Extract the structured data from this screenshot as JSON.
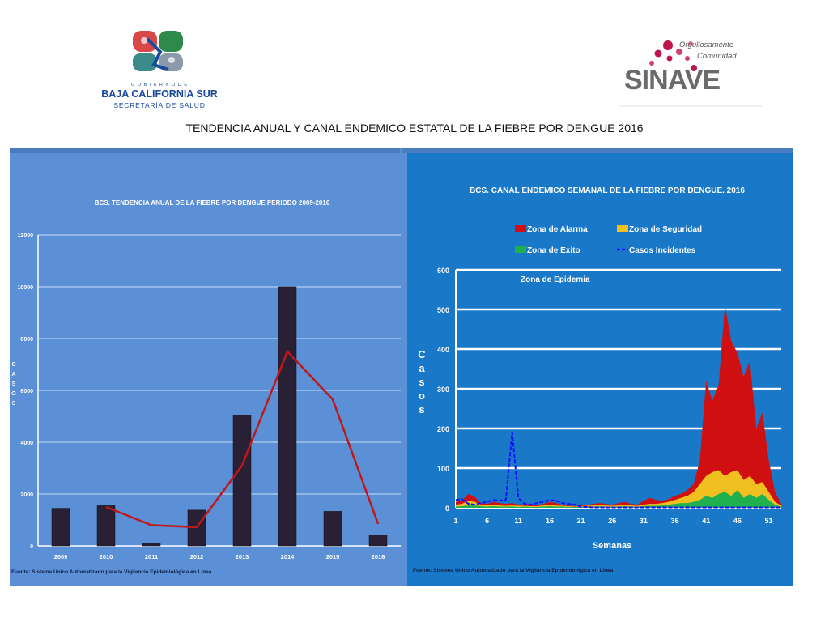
{
  "page_title": "TENDENCIA ANUAL Y CANAL ENDEMICO  ESTATAL DE LA FIEBRE POR DENGUE 2016",
  "logo_left": {
    "gobierno": "G O B I E R N O   D E",
    "state": "BAJA CALIFORNIA SUR",
    "dept": "SECRETARÍA DE SALUD"
  },
  "logo_right": {
    "tagline1": "Orgullosamente",
    "tagline2": "Comunidad",
    "name": "SINAVE"
  },
  "colors": {
    "bar": "#2a2035",
    "trend": "#c01818",
    "alarma": "#d01010",
    "seguridad": "#f0c020",
    "exito": "#20b050",
    "casos": "#1010ff"
  },
  "chart_data": [
    {
      "type": "bar",
      "title": "BCS. TENDENCIA ANUAL DE LA FIEBRE POR DENGUE  PERIODO 2009-2016",
      "categories": [
        "2009",
        "2010",
        "2011",
        "2012",
        "2013",
        "2014",
        "2015",
        "2016"
      ],
      "values": [
        1450,
        1550,
        100,
        1380,
        5050,
        10000,
        1330,
        420
      ],
      "trend_line": {
        "start_index": 1,
        "values": [
          1500,
          800,
          720,
          3100,
          7500,
          5650,
          850
        ]
      },
      "ylabel": "C A S O S",
      "ylabel_letters": [
        "C",
        "A",
        "S",
        "O",
        "S"
      ],
      "ylim": [
        0,
        12000
      ],
      "yticks": [
        "0",
        "2000",
        "4000",
        "6000",
        "8000",
        "10000",
        "12000"
      ],
      "grid": true,
      "source": "Fuente: Sistema Único Automatizado para la Vigilancia Epidemiológica en Línea"
    },
    {
      "type": "area",
      "title": "BCS. CANAL ENDEMICO SEMANAL DE LA FIEBRE POR DENGUE. 2016",
      "legend": [
        "Zona de Alarma",
        "Zona de Seguridad",
        "Zona de Exito",
        "Casos Incidentes"
      ],
      "zone_label": "Zona de Epidemia",
      "xlabel": "Semanas",
      "ylabel": "Casos",
      "ylabel_letters": [
        "C",
        "a",
        "s",
        "o",
        "s"
      ],
      "xticks": [
        "1",
        "6",
        "11",
        "16",
        "21",
        "26",
        "31",
        "36",
        "41",
        "46",
        "51"
      ],
      "yticks": [
        "0",
        "100",
        "200",
        "300",
        "400",
        "500",
        "600"
      ],
      "ylim": [
        0,
        600
      ],
      "xlim": [
        1,
        53
      ],
      "weeks": [
        1,
        2,
        3,
        4,
        5,
        6,
        7,
        8,
        9,
        10,
        11,
        12,
        13,
        14,
        15,
        16,
        17,
        18,
        19,
        20,
        21,
        22,
        23,
        24,
        25,
        26,
        27,
        28,
        29,
        30,
        31,
        32,
        33,
        34,
        35,
        36,
        37,
        38,
        39,
        40,
        41,
        42,
        43,
        44,
        45,
        46,
        47,
        48,
        49,
        50,
        51,
        52,
        53
      ],
      "series": [
        {
          "name": "Zona de Alarma",
          "values": [
            15,
            18,
            35,
            28,
            12,
            10,
            15,
            12,
            10,
            12,
            8,
            10,
            8,
            6,
            10,
            15,
            12,
            8,
            6,
            4,
            6,
            8,
            10,
            12,
            10,
            8,
            12,
            15,
            10,
            8,
            18,
            25,
            20,
            18,
            22,
            30,
            35,
            45,
            60,
            120,
            320,
            270,
            310,
            510,
            420,
            390,
            330,
            370,
            200,
            240,
            120,
            40,
            10
          ]
        },
        {
          "name": "Zona de Seguridad",
          "values": [
            8,
            10,
            18,
            15,
            8,
            6,
            8,
            6,
            5,
            6,
            5,
            5,
            4,
            4,
            6,
            8,
            6,
            5,
            4,
            3,
            4,
            5,
            6,
            7,
            6,
            5,
            6,
            8,
            6,
            5,
            8,
            10,
            10,
            12,
            15,
            20,
            25,
            30,
            40,
            60,
            80,
            90,
            95,
            80,
            90,
            95,
            70,
            80,
            60,
            65,
            40,
            15,
            5
          ]
        },
        {
          "name": "Zona de Exito",
          "values": [
            3,
            4,
            6,
            6,
            4,
            3,
            4,
            3,
            3,
            3,
            2,
            3,
            2,
            2,
            3,
            4,
            3,
            3,
            2,
            2,
            2,
            3,
            3,
            4,
            3,
            3,
            3,
            4,
            3,
            3,
            4,
            5,
            5,
            6,
            8,
            10,
            12,
            12,
            15,
            20,
            30,
            25,
            35,
            40,
            30,
            45,
            25,
            35,
            25,
            35,
            20,
            8,
            2
          ]
        },
        {
          "name": "Casos Incidentes",
          "values": [
            20,
            22,
            10,
            8,
            12,
            15,
            20,
            18,
            20,
            190,
            25,
            10,
            8,
            12,
            15,
            20,
            18,
            12,
            10,
            8,
            2,
            2,
            1,
            1,
            1,
            1,
            1,
            1,
            1,
            1,
            1,
            1,
            1,
            1,
            1,
            1,
            1,
            1,
            1,
            1,
            1,
            1,
            1,
            1,
            1,
            1,
            1,
            1,
            1,
            1,
            1,
            1,
            1
          ]
        }
      ],
      "source": "Fuente: Sistema Único Automatizado para la Vigilancia Epidemiológica en Línea"
    }
  ]
}
